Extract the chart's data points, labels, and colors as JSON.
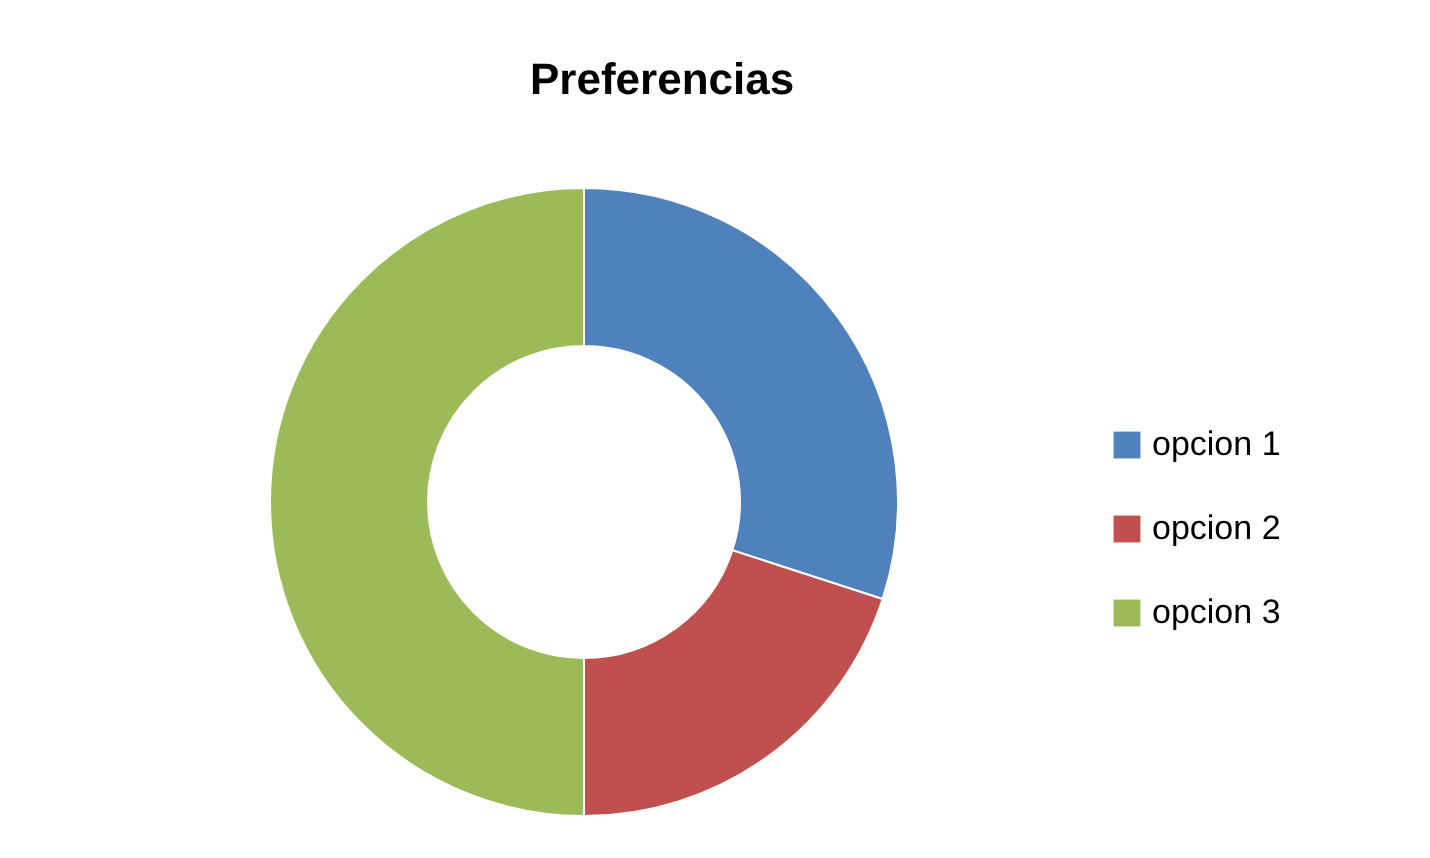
{
  "chart_data": {
    "type": "donut",
    "title": "Preferencias",
    "categories": [
      "opcion 1",
      "opcion 2",
      "opcion 3"
    ],
    "values": [
      30,
      20,
      50
    ],
    "colors": [
      "#4f81bd",
      "#c0504d",
      "#9bbb59"
    ],
    "legend": "right"
  }
}
